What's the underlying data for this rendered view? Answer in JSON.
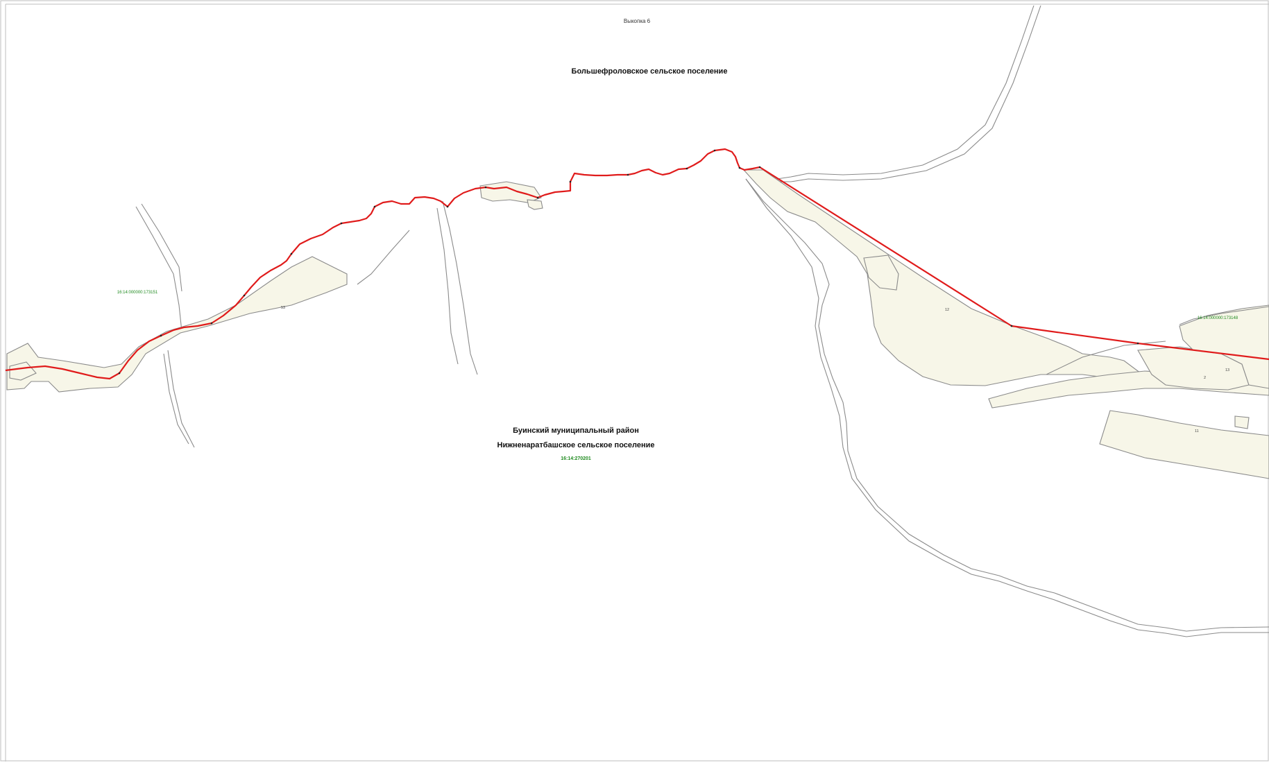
{
  "map": {
    "sheet_label": "Выкопка 6",
    "north_settlement": "Большефроловское сельское поселение",
    "district": "Буинский муниципальный район",
    "south_settlement": "Нижненаратбашское сельское поселение",
    "cadastral_main": "16:14:270201",
    "cadastral_west": "16:14:000000:173151",
    "cadastral_east": "16:14:000000:173148",
    "parcel_labels": {
      "west": "53",
      "east_large": "12",
      "east_mid": "2",
      "east_small": "13",
      "east_lower": "11"
    },
    "colors": {
      "border": "#e01b1b",
      "parcel_fill": "#f7f6e8",
      "parcel_stroke": "#8a8a8a",
      "cadastral_text": "#1f8a1f"
    }
  }
}
